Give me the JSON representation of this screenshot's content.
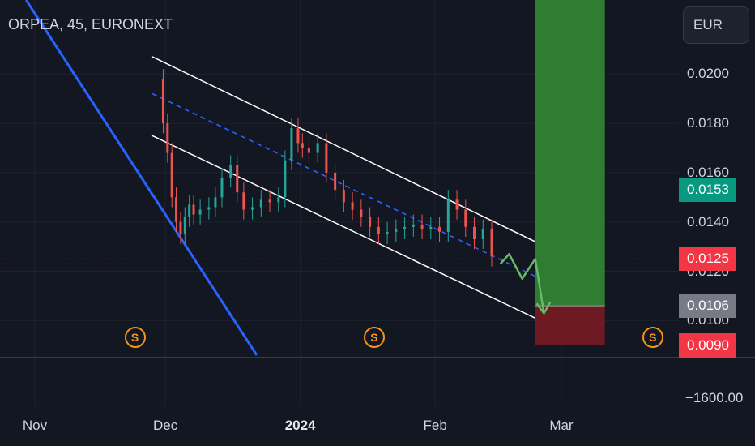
{
  "header": {
    "title": "ORPEA, 45, EURONEXT",
    "currency": "EUR"
  },
  "colors": {
    "background": "#131722",
    "up": "#26a69a",
    "down": "#ef5350",
    "channel": "#ffffff",
    "midline": "#2962ff",
    "trendline": "#2962ff",
    "projection": "#66bb6a",
    "target_zone": "#2e7d32",
    "stop_zone": "#6d1a22",
    "last_price": "#f23645",
    "ma_badge": "#089981",
    "entry_badge": "#787b86"
  },
  "badges": [
    {
      "label": "0.0153",
      "color": "#089981",
      "value": 0.0153
    },
    {
      "label": "0.0125",
      "color": "#f23645",
      "value": 0.0125
    },
    {
      "label": "0.0106",
      "color": "#787b86",
      "value": 0.0106
    },
    {
      "label": "0.0090",
      "color": "#f23645",
      "value": 0.009
    }
  ],
  "events": {
    "label": "S",
    "icon": "dividend-s-icon",
    "dates": [
      "2023-11-24",
      "2024-01-18",
      "2024-03-22"
    ]
  },
  "chart_data": {
    "type": "line",
    "title": "ORPEA, 45, EURONEXT",
    "currency": "EUR",
    "y_axis": {
      "ticks": [
        {
          "label": "0.0200",
          "value": 0.02
        },
        {
          "label": "0.0180",
          "value": 0.018
        },
        {
          "label": "0.0160",
          "value": 0.016
        },
        {
          "label": "0.0140",
          "value": 0.014
        },
        {
          "label": "0.0120",
          "value": 0.012
        },
        {
          "label": "0.0100",
          "value": 0.01
        }
      ],
      "lower_pane_tick": {
        "label": "−1600.00",
        "value": -1600.0
      },
      "ylim": [
        0.0085,
        0.023
      ]
    },
    "x_axis": {
      "ticks": [
        {
          "label": "Nov",
          "date": "2023-11-01",
          "bold": false
        },
        {
          "label": "Dec",
          "date": "2023-12-01",
          "bold": false
        },
        {
          "label": "2024",
          "date": "2024-01-01",
          "bold": true
        },
        {
          "label": "Feb",
          "date": "2024-02-01",
          "bold": false
        },
        {
          "label": "Mar",
          "date": "2024-03-01",
          "bold": false
        }
      ],
      "xlim": [
        "2023-10-24",
        "2024-03-28"
      ]
    },
    "series": [
      {
        "type": "candlestick-approx",
        "x": [
          "2023-11-30",
          "2023-12-01",
          "2023-12-02",
          "2023-12-03",
          "2023-12-04",
          "2023-12-05",
          "2023-12-06",
          "2023-12-07",
          "2023-12-08",
          "2023-12-10",
          "2023-12-12",
          "2023-12-13",
          "2023-12-15",
          "2023-12-17",
          "2023-12-18",
          "2023-12-20",
          "2023-12-22",
          "2023-12-24",
          "2023-12-26",
          "2023-12-28",
          "2023-12-29",
          "2023-12-31",
          "2024-01-01",
          "2024-01-02",
          "2024-01-04",
          "2024-01-06",
          "2024-01-08",
          "2024-01-10",
          "2024-01-12",
          "2024-01-14",
          "2024-01-16",
          "2024-01-18",
          "2024-01-20",
          "2024-01-22",
          "2024-01-24",
          "2024-01-26",
          "2024-01-28",
          "2024-01-30",
          "2024-02-01",
          "2024-02-03",
          "2024-02-05",
          "2024-02-07",
          "2024-02-09",
          "2024-02-11",
          "2024-02-13",
          "2024-02-15"
        ],
        "values": [
          0.0198,
          0.018,
          0.0168,
          0.015,
          0.014,
          0.0135,
          0.0142,
          0.0147,
          0.0143,
          0.0145,
          0.0146,
          0.015,
          0.0158,
          0.0163,
          0.0152,
          0.0145,
          0.0146,
          0.0149,
          0.0148,
          0.015,
          0.0165,
          0.0178,
          0.0172,
          0.017,
          0.0168,
          0.0172,
          0.016,
          0.0153,
          0.0148,
          0.0145,
          0.0142,
          0.0138,
          0.0135,
          0.0136,
          0.0137,
          0.0138,
          0.0139,
          0.0137,
          0.0138,
          0.0136,
          0.0149,
          0.0145,
          0.0138,
          0.0133,
          0.0137,
          0.0126
        ]
      },
      {
        "type": "projection",
        "x": [
          "2024-02-16",
          "2024-02-18",
          "2024-02-21",
          "2024-02-24",
          "2024-02-26"
        ],
        "values": [
          0.0123,
          0.0127,
          0.0117,
          0.0125,
          0.0103
        ]
      }
    ],
    "channel": {
      "upper": {
        "x": [
          "2023-11-28",
          "2024-02-24"
        ],
        "values": [
          0.0207,
          0.0132
        ]
      },
      "middle": {
        "x": [
          "2023-11-28",
          "2024-02-24"
        ],
        "values": [
          0.0192,
          0.0118
        ]
      },
      "lower": {
        "x": [
          "2023-11-28",
          "2024-02-24"
        ],
        "values": [
          0.0175,
          0.0101
        ]
      }
    },
    "trendline": {
      "x": [
        "2023-10-30",
        "2023-12-22"
      ],
      "values": [
        0.023,
        0.0086
      ]
    },
    "long_position": {
      "x_start": "2024-02-24",
      "x_end": "2024-03-11",
      "entry": 0.0106,
      "target": 0.023,
      "stop": 0.009
    },
    "last_price": 0.0125,
    "grid": true
  }
}
